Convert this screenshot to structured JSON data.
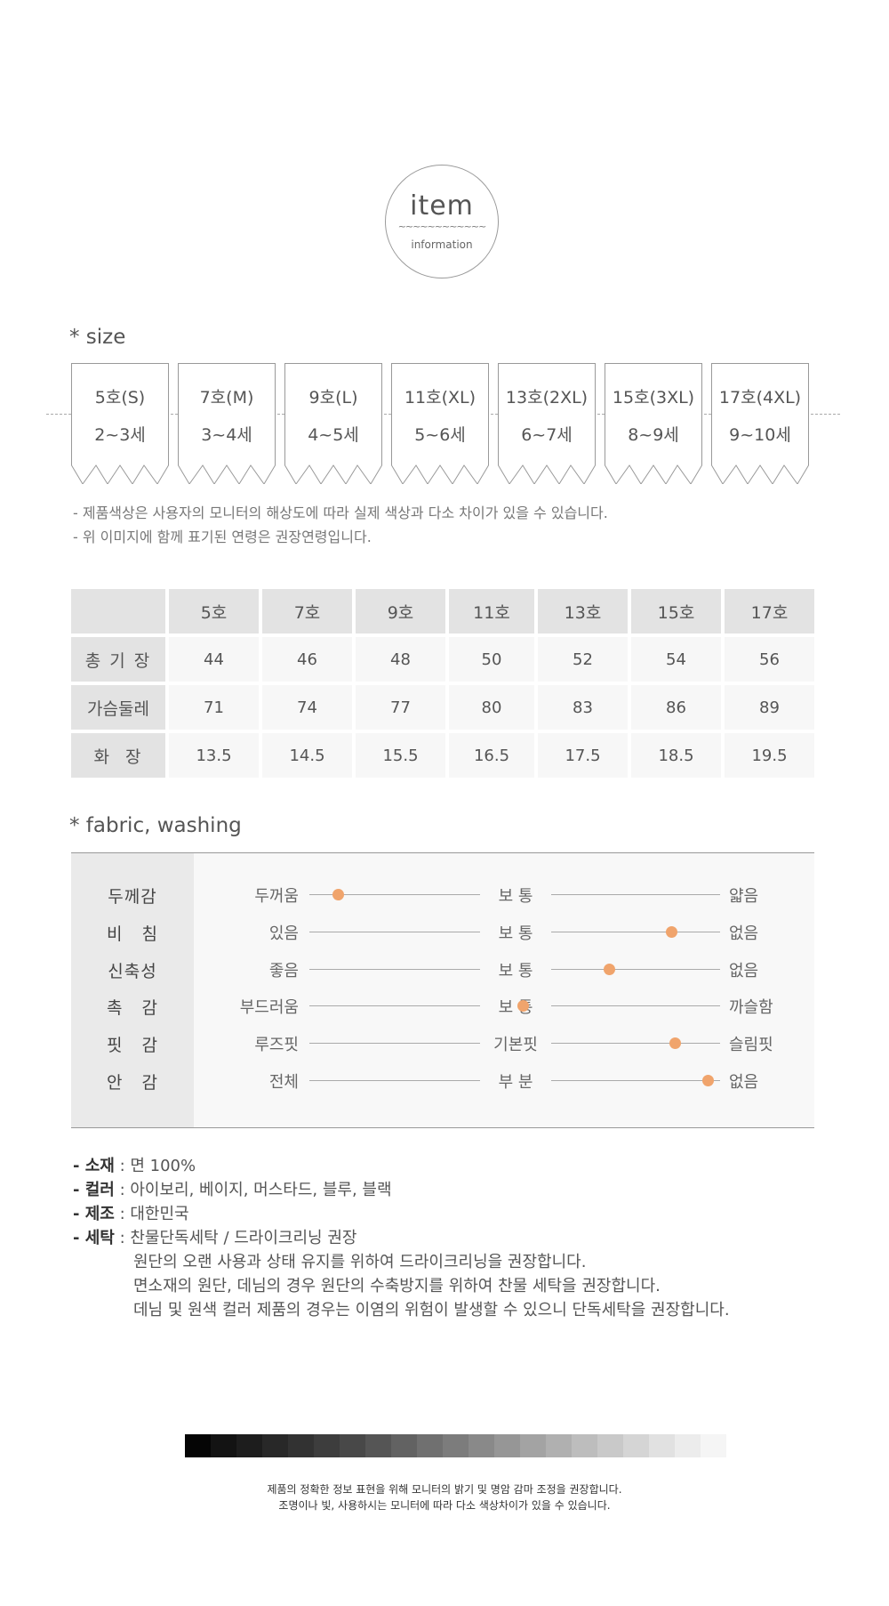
{
  "badge": {
    "title": "item",
    "wave": "~~~~~~~~~~~~",
    "subtitle": "information"
  },
  "size_section": {
    "title": "* size",
    "tags": [
      {
        "label": "5호(S)",
        "age": "2~3세"
      },
      {
        "label": "7호(M)",
        "age": "3~4세"
      },
      {
        "label": "9호(L)",
        "age": "4~5세"
      },
      {
        "label": "11호(XL)",
        "age": "5~6세"
      },
      {
        "label": "13호(2XL)",
        "age": "6~7세"
      },
      {
        "label": "15호(3XL)",
        "age": "8~9세"
      },
      {
        "label": "17호(4XL)",
        "age": "9~10세"
      }
    ],
    "notes": [
      "- 제품색상은 사용자의 모니터의 해상도에 따라 실제 색상과 다소 차이가 있을 수 있습니다.",
      "- 위 이미지에 함께 표기된 연령은 권장연령입니다."
    ]
  },
  "size_table": {
    "headers": [
      "5호",
      "7호",
      "9호",
      "11호",
      "13호",
      "15호",
      "17호"
    ],
    "rows": [
      {
        "label": "총 기 장",
        "values": [
          "44",
          "46",
          "48",
          "50",
          "52",
          "54",
          "56"
        ]
      },
      {
        "label": "가슴둘레",
        "values": [
          "71",
          "74",
          "77",
          "80",
          "83",
          "86",
          "89"
        ]
      },
      {
        "label": "화  장",
        "values": [
          "13.5",
          "14.5",
          "15.5",
          "16.5",
          "17.5",
          "18.5",
          "19.5"
        ]
      }
    ]
  },
  "fabric_section": {
    "title": "* fabric, washing",
    "dot_color": "#f0a46c",
    "rows": [
      {
        "label": "두께감",
        "left": "두꺼움",
        "mid": "보 통",
        "right": "얇음",
        "level": 0.07
      },
      {
        "label": "비   침",
        "left": "있음",
        "mid": "보 통",
        "right": "없음",
        "level": 0.88
      },
      {
        "label": "신축성",
        "left": "좋음",
        "mid": "보 통",
        "right": "없음",
        "level": 0.73
      },
      {
        "label": "촉   감",
        "left": "부드러움",
        "mid": "보 통",
        "right": "까슬함",
        "level": 0.52
      },
      {
        "label": "핏   감",
        "left": "루즈핏",
        "mid": "기본핏",
        "right": "슬림핏",
        "level": 0.89
      },
      {
        "label": "안   감",
        "left": "전체",
        "mid": "부 분",
        "right": "없음",
        "level": 0.97
      }
    ]
  },
  "details": {
    "material": {
      "key": "- 소재",
      "value": " : 면 100%"
    },
    "color": {
      "key": "- 컬러",
      "value": " : 아이보리, 베이지, 머스타드, 블루, 블랙"
    },
    "origin": {
      "key": "- 제조",
      "value": " : 대한민국"
    },
    "washing": {
      "key": "- 세탁",
      "value": " : 찬물단독세탁 / 드라이크리닝 권장"
    },
    "washing_notes": [
      "원단의 오랜 사용과 상태 유지를 위하여 드라이크리닝을 권장합니다.",
      "면소재의 원단, 데님의 경우 원단의 수축방지를 위하여 찬물 세탁을 권장합니다.",
      "데님 및 원색 컬러 제품의 경우는 이염의 위험이 발생할 수 있으니 단독세탁을 권장합니다."
    ]
  },
  "grayscale": [
    "#050505",
    "#131313",
    "#1d1d1d",
    "#282828",
    "#323232",
    "#3d3d3d",
    "#484848",
    "#555555",
    "#626262",
    "#707070",
    "#7c7c7c",
    "#898989",
    "#969696",
    "#a3a3a3",
    "#b0b0b0",
    "#bdbdbd",
    "#c9c9c9",
    "#d5d5d5",
    "#e1e1e1",
    "#ececec",
    "#f5f5f5"
  ],
  "footer": [
    "제품의 정확한 정보 표현을 위해 모니터의 밝기 및 명암 감마 조정을 권장합니다.",
    "조명이나 빛, 사용하시는 모니터에 따라 다소 색상차이가 있을 수 있습니다."
  ]
}
